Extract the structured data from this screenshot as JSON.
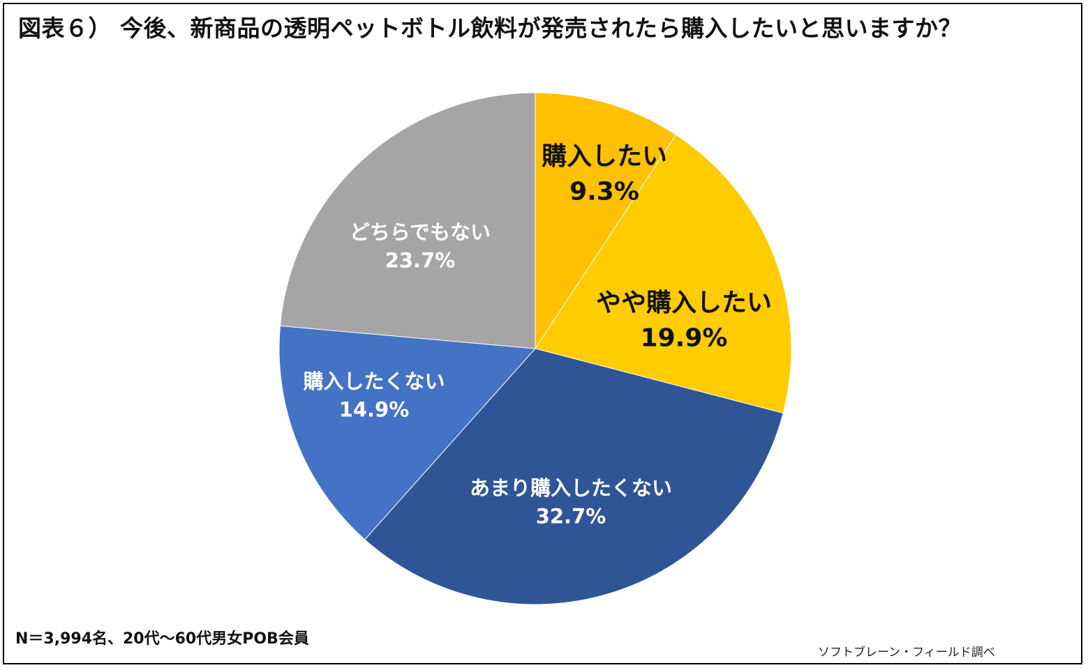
{
  "title": "図表６） 今後、新商品の透明ペットボトル飲料が発売されたら購入したいと思いますか？",
  "footnote": "N＝3,994名、20代～60代男女POB会員",
  "source": "ソフトブレーン・フィールド調べ",
  "chart_data": {
    "type": "pie",
    "title": "図表６） 今後、新商品の透明ペットボトル飲料が発売されたら購入したいと思いますか？",
    "start": "12 o'clock, clockwise",
    "slices": [
      {
        "label": "購入したい",
        "value": 9.3,
        "value_label": "9.3%",
        "color": "#FFC000",
        "label_color": "#111111"
      },
      {
        "label": "やや購入したい",
        "value": 19.9,
        "value_label": "19.9%",
        "color": "#FFCC00",
        "label_color": "#111111"
      },
      {
        "label": "あまり購入したくない",
        "value": 32.7,
        "value_label": "32.7%",
        "color": "#2F5597",
        "label_color": "#ffffff"
      },
      {
        "label": "購入したくない",
        "value": 14.9,
        "value_label": "14.9%",
        "color": "#4472C4",
        "label_color": "#ffffff"
      },
      {
        "label": "どちらでもない",
        "value": 23.7,
        "value_label": "23.7%",
        "color": "#A5A5A5",
        "label_color": "#ffffff"
      }
    ]
  }
}
